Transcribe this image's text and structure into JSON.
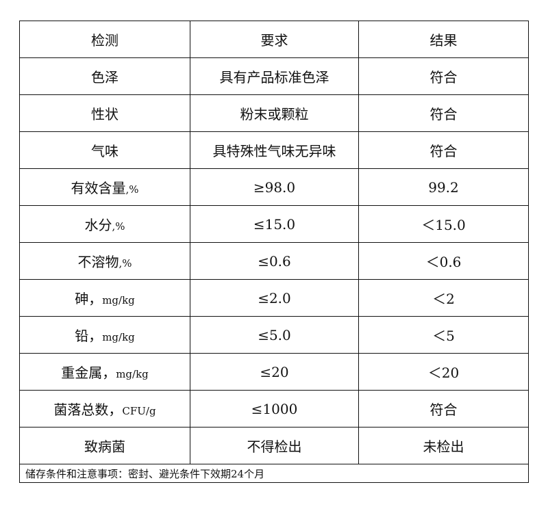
{
  "header": [
    "检测",
    "要求",
    "结果"
  ],
  "rows": [
    {
      "item": "色泽",
      "unit": "",
      "requirement": "具有产品标准色泽",
      "result": "符合"
    },
    {
      "item": "性状",
      "unit": "",
      "requirement": "粉末或颗粒",
      "result": "符合"
    },
    {
      "item": "气味",
      "unit": "",
      "requirement": "具特殊性气味无异味",
      "result": "符合"
    },
    {
      "item": "有效含量",
      "unit": ",%",
      "requirement": "≥98.0",
      "result": "99.2"
    },
    {
      "item": "水分",
      "unit": ",%",
      "requirement": "≤15.0",
      "result": "＜15.0"
    },
    {
      "item": "不溶物",
      "unit": ",%",
      "requirement": "≤0.6",
      "result": "＜0.6"
    },
    {
      "item": "砷，",
      "unit": "mg/kg",
      "requirement": "≤2.0",
      "result": "＜2"
    },
    {
      "item": "铅，",
      "unit": "mg/kg",
      "requirement": "≤5.0",
      "result": "＜5"
    },
    {
      "item": "重金属，",
      "unit": "mg/kg",
      "requirement": "≤20",
      "result": "＜20"
    },
    {
      "item": "菌落总数，",
      "unit": "CFU/g",
      "requirement": "≤1000",
      "result": "符合"
    },
    {
      "item": "致病菌",
      "unit": "",
      "requirement": "不得检出",
      "result": "未检出"
    }
  ],
  "footer": "储存条件和注意事项：密封、避光条件下效期24个月"
}
